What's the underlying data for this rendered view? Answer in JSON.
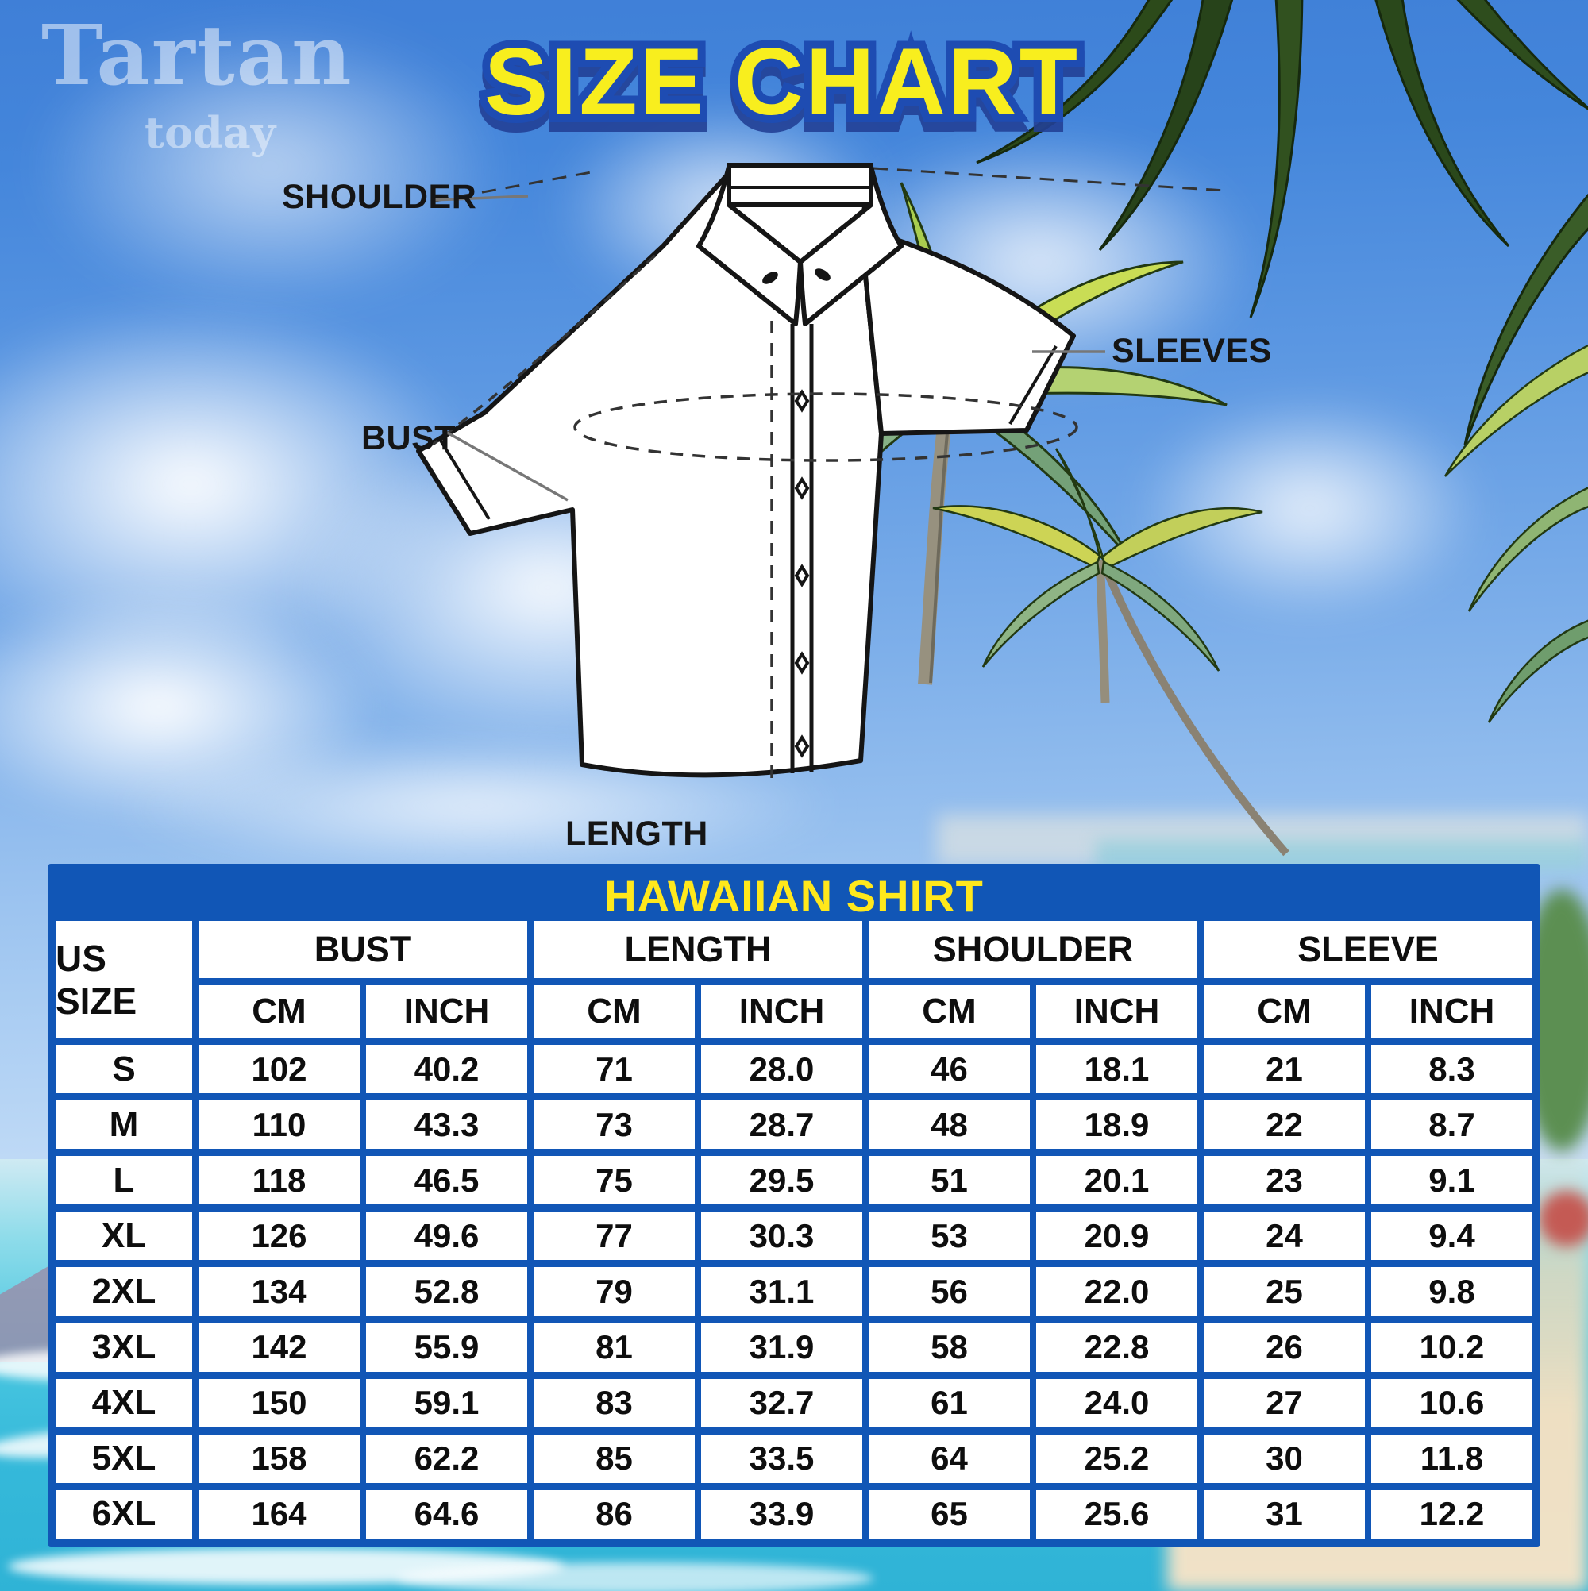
{
  "watermark": {
    "line1": "Tartan",
    "line2": "today"
  },
  "title": "SIZE CHART",
  "diagram": {
    "labels": {
      "shoulder": "SHOULDER",
      "sleeves": "SLEEVES",
      "bust": "BUST",
      "length": "LENGTH"
    }
  },
  "chart_data": {
    "type": "table",
    "title": "HAWAIIAN SHIRT",
    "row_header": "US SIZE",
    "column_groups": [
      "BUST",
      "LENGTH",
      "SHOULDER",
      "SLEEVE"
    ],
    "units": [
      "CM",
      "INCH"
    ],
    "columns": [
      "US SIZE",
      "BUST CM",
      "BUST INCH",
      "LENGTH CM",
      "LENGTH INCH",
      "SHOULDER CM",
      "SHOULDER INCH",
      "SLEEVE CM",
      "SLEEVE INCH"
    ],
    "rows": [
      [
        "S",
        "102",
        "40.2",
        "71",
        "28.0",
        "46",
        "18.1",
        "21",
        "8.3"
      ],
      [
        "M",
        "110",
        "43.3",
        "73",
        "28.7",
        "48",
        "18.9",
        "22",
        "8.7"
      ],
      [
        "L",
        "118",
        "46.5",
        "75",
        "29.5",
        "51",
        "20.1",
        "23",
        "9.1"
      ],
      [
        "XL",
        "126",
        "49.6",
        "77",
        "30.3",
        "53",
        "20.9",
        "24",
        "9.4"
      ],
      [
        "2XL",
        "134",
        "52.8",
        "79",
        "31.1",
        "56",
        "22.0",
        "25",
        "9.8"
      ],
      [
        "3XL",
        "142",
        "55.9",
        "81",
        "31.9",
        "58",
        "22.8",
        "26",
        "10.2"
      ],
      [
        "4XL",
        "150",
        "59.1",
        "83",
        "32.7",
        "61",
        "24.0",
        "27",
        "10.6"
      ],
      [
        "5XL",
        "158",
        "62.2",
        "85",
        "33.5",
        "64",
        "25.2",
        "30",
        "11.8"
      ],
      [
        "6XL",
        "164",
        "64.6",
        "86",
        "33.9",
        "65",
        "25.6",
        "31",
        "12.2"
      ]
    ]
  },
  "colors": {
    "table_blue": "#1156b6",
    "title_yellow": "#f8ee1e",
    "title_outline": "#1e4cb2",
    "header_yellow": "#ffe81c",
    "sky_top": "#3f7fd7",
    "ocean": "#35b9da",
    "sand": "#efdfc4"
  }
}
